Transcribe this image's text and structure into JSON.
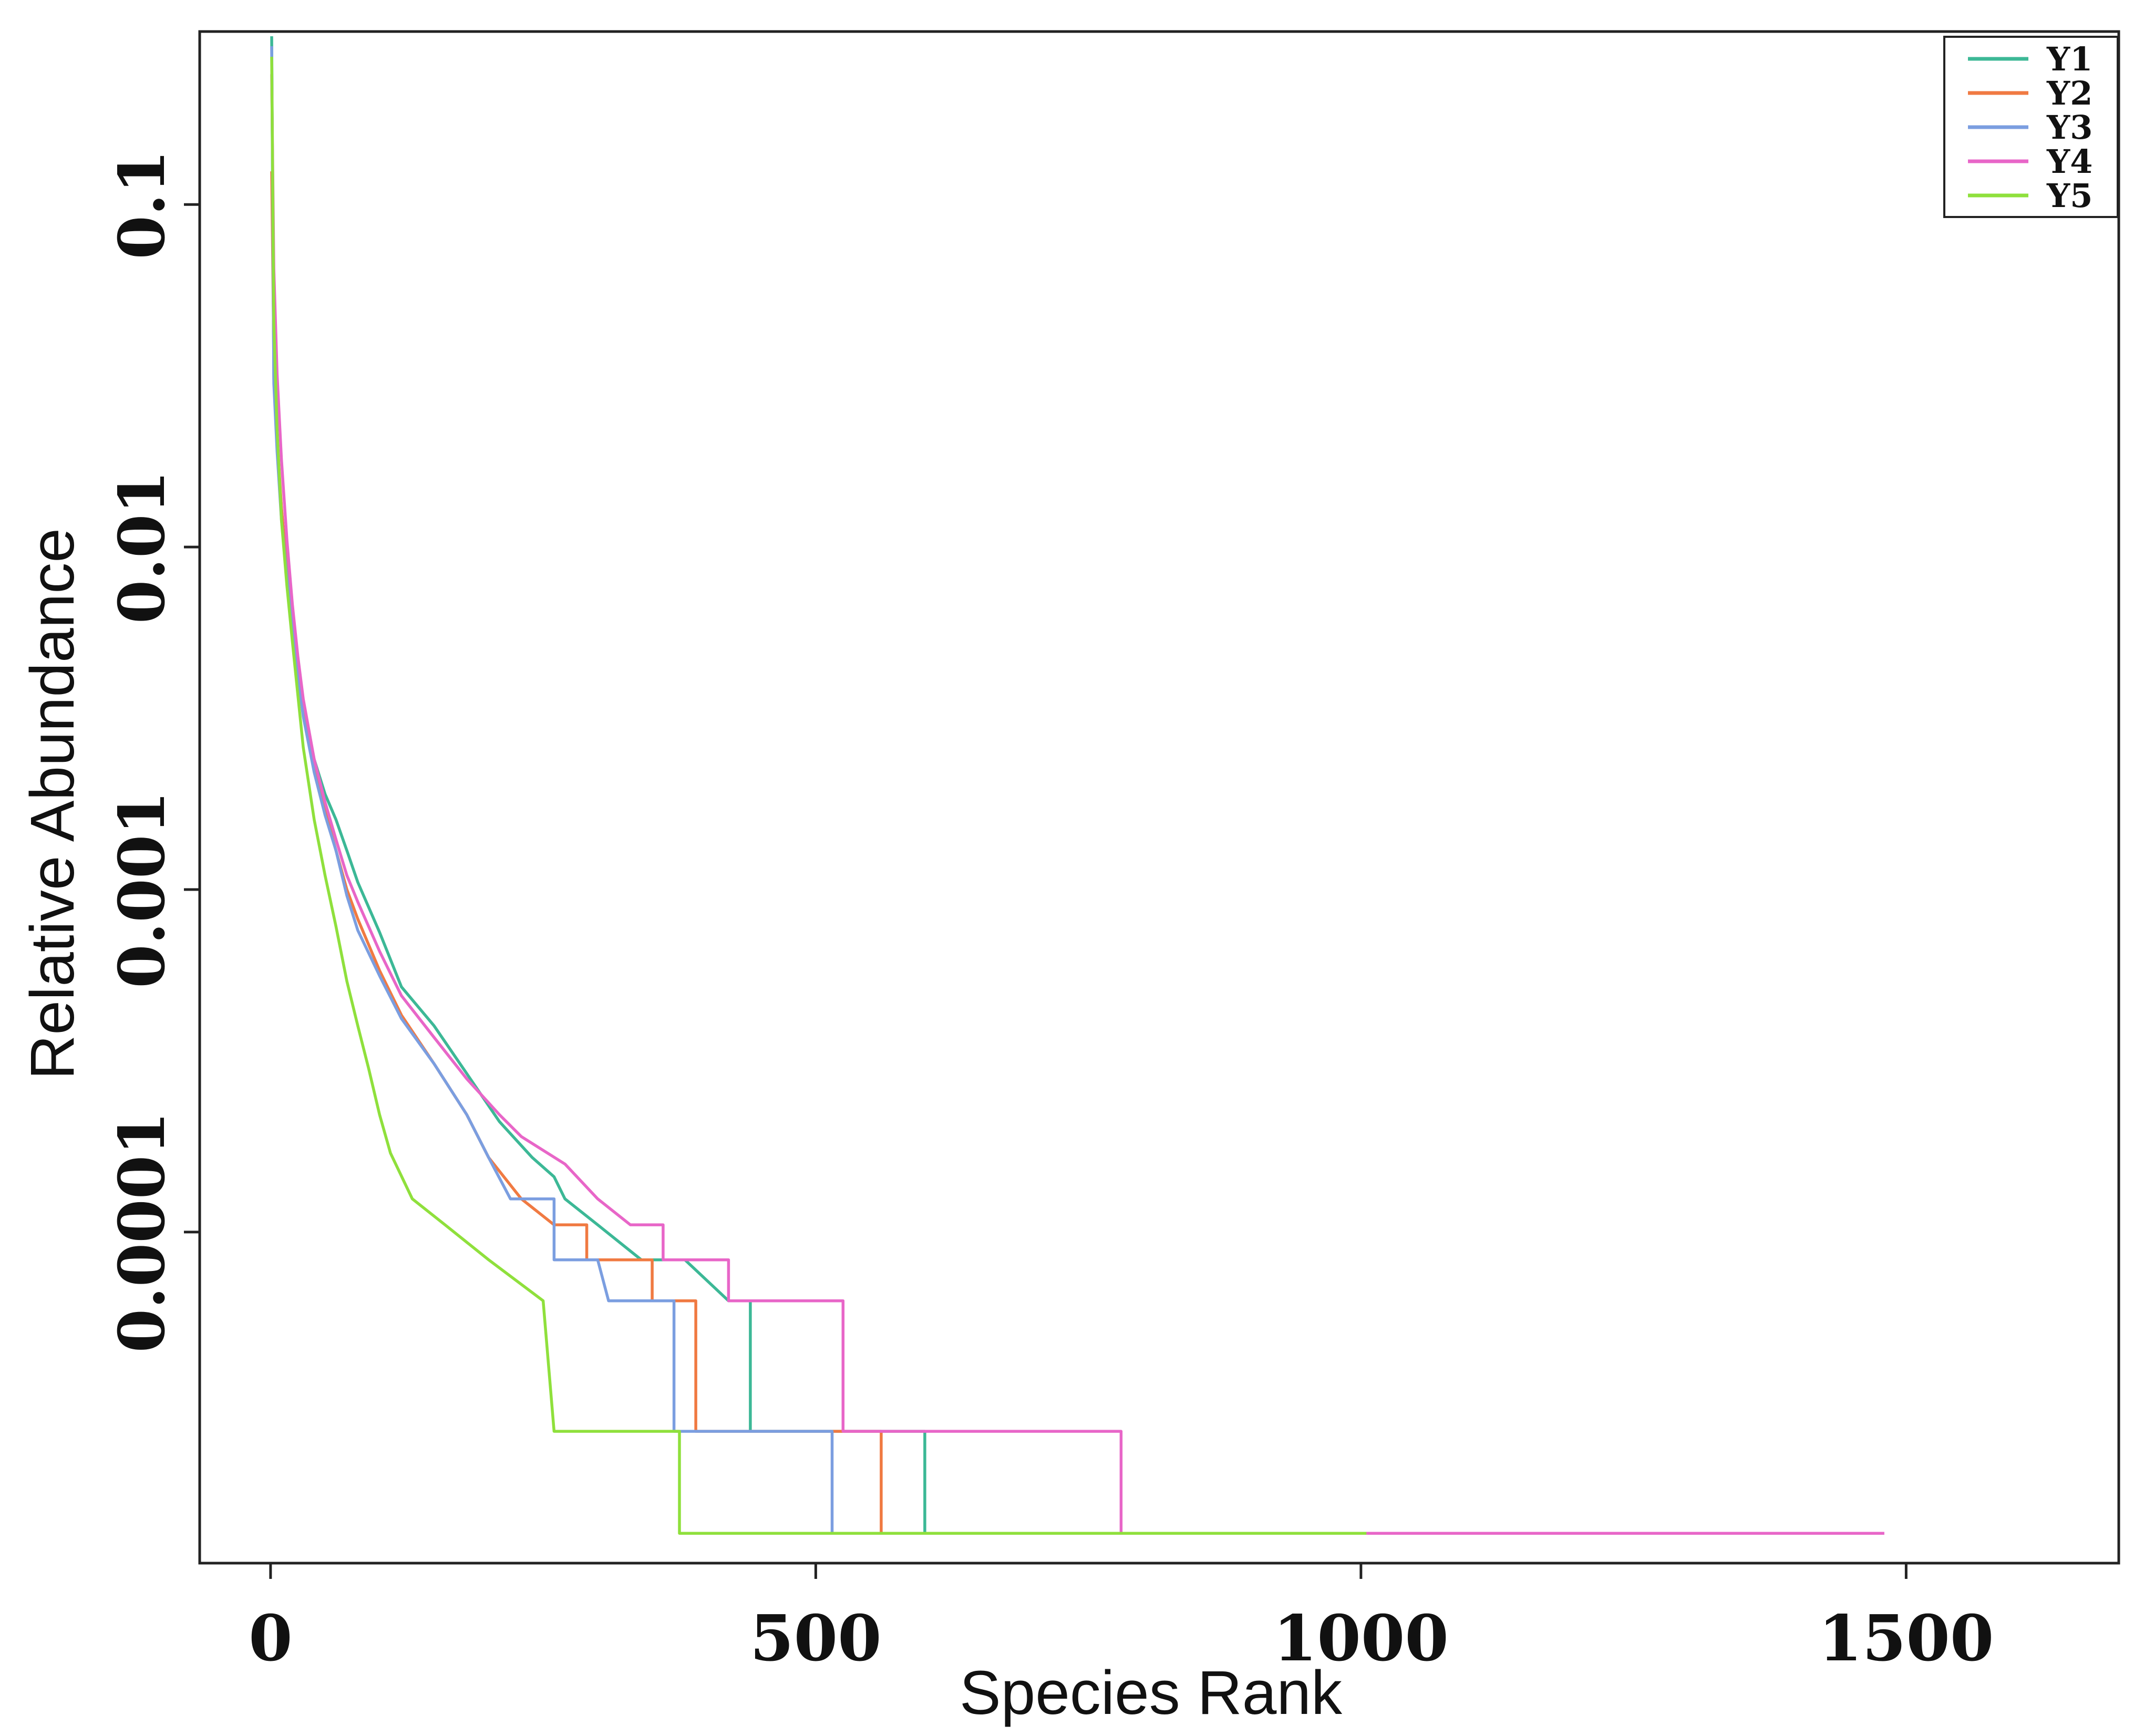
{
  "chart_data": {
    "type": "line",
    "title": "",
    "xlabel": "Species Rank",
    "ylabel": "Relative Abundance",
    "xscale": "linear",
    "yscale": "log",
    "xlim": [
      -65,
      1695
    ],
    "ylim": [
      1.08e-05,
      0.32
    ],
    "x_ticks": [
      0,
      500,
      1000,
      1500
    ],
    "x_tick_labels": [
      "0",
      "500",
      "1000",
      "1500"
    ],
    "y_ticks": [
      0.1,
      0.01,
      0.001,
      0.0001
    ],
    "y_tick_labels": [
      "0.1",
      "0.01",
      "0.001",
      "0.0001"
    ],
    "grid": false,
    "legend_position": "top-right",
    "series": [
      {
        "name": "Y1",
        "color": "#3cb896",
        "points": [
          [
            1,
            0.31
          ],
          [
            3,
            0.031
          ],
          [
            6,
            0.02
          ],
          [
            10,
            0.013
          ],
          [
            15,
            0.0085
          ],
          [
            20,
            0.006
          ],
          [
            25,
            0.0045
          ],
          [
            30,
            0.0035
          ],
          [
            40,
            0.0024
          ],
          [
            50,
            0.0019
          ],
          [
            60,
            0.0016
          ],
          [
            70,
            0.0013
          ],
          [
            80,
            0.00105
          ],
          [
            100,
            0.00075
          ],
          [
            120,
            0.00052
          ],
          [
            150,
            0.0004
          ],
          [
            180,
            0.00029
          ],
          [
            210,
            0.00021
          ],
          [
            240,
            0.000165
          ],
          [
            260,
            0.000145
          ],
          [
            270,
            0.000125
          ],
          [
            300,
            0.000105
          ],
          [
            340,
            8.3e-05
          ],
          [
            380,
            8.3e-05
          ],
          [
            420,
            6.3e-05
          ],
          [
            440,
            6.3e-05
          ],
          [
            440,
            2.62e-05
          ],
          [
            600,
            2.62e-05
          ],
          [
            600,
            1.32e-05
          ],
          [
            760,
            1.32e-05
          ]
        ]
      },
      {
        "name": "Y2",
        "color": "#f07a42",
        "points": [
          [
            1,
            0.125
          ],
          [
            3,
            0.036
          ],
          [
            6,
            0.021
          ],
          [
            10,
            0.013
          ],
          [
            15,
            0.0085
          ],
          [
            20,
            0.006
          ],
          [
            25,
            0.0043
          ],
          [
            30,
            0.0033
          ],
          [
            40,
            0.0023
          ],
          [
            50,
            0.0017
          ],
          [
            60,
            0.0013
          ],
          [
            70,
            0.001
          ],
          [
            80,
            0.00082
          ],
          [
            100,
            0.00058
          ],
          [
            120,
            0.00043
          ],
          [
            150,
            0.00031
          ],
          [
            180,
            0.00022
          ],
          [
            200,
            0.000165
          ],
          [
            230,
            0.000125
          ],
          [
            260,
            0.000105
          ],
          [
            290,
            0.000105
          ],
          [
            290,
            8.3e-05
          ],
          [
            350,
            8.3e-05
          ],
          [
            350,
            6.3e-05
          ],
          [
            390,
            6.3e-05
          ],
          [
            390,
            2.62e-05
          ],
          [
            560,
            2.62e-05
          ],
          [
            560,
            1.32e-05
          ],
          [
            760,
            1.32e-05
          ]
        ]
      },
      {
        "name": "Y3",
        "color": "#7b9ee0",
        "points": [
          [
            1,
            0.29
          ],
          [
            3,
            0.03
          ],
          [
            6,
            0.019
          ],
          [
            10,
            0.012
          ],
          [
            15,
            0.0082
          ],
          [
            20,
            0.0058
          ],
          [
            25,
            0.0042
          ],
          [
            30,
            0.0032
          ],
          [
            40,
            0.0022
          ],
          [
            50,
            0.00165
          ],
          [
            60,
            0.0013
          ],
          [
            70,
            0.00096
          ],
          [
            80,
            0.00076
          ],
          [
            100,
            0.00056
          ],
          [
            120,
            0.00042
          ],
          [
            150,
            0.00031
          ],
          [
            180,
            0.00022
          ],
          [
            200,
            0.000165
          ],
          [
            220,
            0.000125
          ],
          [
            260,
            0.000125
          ],
          [
            260,
            8.3e-05
          ],
          [
            300,
            8.3e-05
          ],
          [
            310,
            6.3e-05
          ],
          [
            370,
            6.3e-05
          ],
          [
            370,
            2.62e-05
          ],
          [
            515,
            2.62e-05
          ],
          [
            515,
            1.32e-05
          ],
          [
            760,
            1.32e-05
          ]
        ]
      },
      {
        "name": "Y4",
        "color": "#e866c8",
        "points": [
          [
            1,
            0.24
          ],
          [
            3,
            0.065
          ],
          [
            6,
            0.032
          ],
          [
            10,
            0.018
          ],
          [
            15,
            0.0105
          ],
          [
            20,
            0.0068
          ],
          [
            25,
            0.0048
          ],
          [
            30,
            0.0036
          ],
          [
            40,
            0.0024
          ],
          [
            50,
            0.0018
          ],
          [
            60,
            0.0014
          ],
          [
            70,
            0.0011
          ],
          [
            80,
            0.00092
          ],
          [
            100,
            0.00066
          ],
          [
            120,
            0.00049
          ],
          [
            150,
            0.00037
          ],
          [
            180,
            0.00028
          ],
          [
            210,
            0.00022
          ],
          [
            230,
            0.00019
          ],
          [
            270,
            0.000158
          ],
          [
            300,
            0.000125
          ],
          [
            330,
            0.000105
          ],
          [
            360,
            0.000105
          ],
          [
            360,
            8.3e-05
          ],
          [
            420,
            8.3e-05
          ],
          [
            420,
            6.3e-05
          ],
          [
            525,
            6.3e-05
          ],
          [
            525,
            2.62e-05
          ],
          [
            780,
            2.62e-05
          ],
          [
            780,
            1.32e-05
          ],
          [
            1480,
            1.32e-05
          ]
        ]
      },
      {
        "name": "Y5",
        "color": "#8fe03c",
        "points": [
          [
            1,
            0.27
          ],
          [
            3,
            0.045
          ],
          [
            6,
            0.022
          ],
          [
            10,
            0.012
          ],
          [
            15,
            0.0077
          ],
          [
            20,
            0.0053
          ],
          [
            25,
            0.0037
          ],
          [
            30,
            0.0026
          ],
          [
            40,
            0.0016
          ],
          [
            50,
            0.0011
          ],
          [
            60,
            0.00078
          ],
          [
            70,
            0.00054
          ],
          [
            80,
            0.0004
          ],
          [
            90,
            0.0003
          ],
          [
            100,
            0.00022
          ],
          [
            110,
            0.00017
          ],
          [
            130,
            0.000125
          ],
          [
            160,
            0.000105
          ],
          [
            200,
            8.3e-05
          ],
          [
            250,
            6.3e-05
          ],
          [
            260,
            2.62e-05
          ],
          [
            375,
            2.62e-05
          ],
          [
            375,
            1.32e-05
          ],
          [
            1005,
            1.32e-05
          ]
        ]
      }
    ]
  }
}
